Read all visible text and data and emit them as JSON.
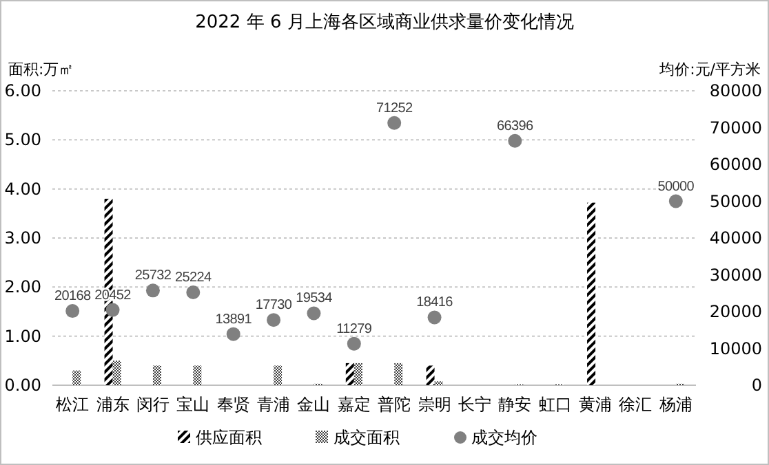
{
  "chart_data": {
    "type": "bar",
    "title": "2022 年 6 月上海各区域商业供求量价变化情况",
    "ylabel": "面积:万㎡",
    "y2label": "均价:元/平方米",
    "categories": [
      "松江",
      "浦东",
      "闵行",
      "宝山",
      "奉贤",
      "青浦",
      "金山",
      "嘉定",
      "普陀",
      "崇明",
      "长宁",
      "静安",
      "虹口",
      "黄浦",
      "徐汇",
      "杨浦"
    ],
    "series": [
      {
        "name": "供应面积",
        "color": "#000000",
        "values": [
          null,
          3.8,
          null,
          null,
          null,
          null,
          null,
          0.45,
          null,
          0.4,
          null,
          null,
          null,
          3.72,
          null,
          null
        ]
      },
      {
        "name": "成交面积",
        "color": "#404040",
        "values": [
          0.3,
          0.5,
          0.4,
          0.4,
          null,
          0.4,
          0.03,
          0.45,
          0.45,
          0.08,
          null,
          0.02,
          0.02,
          null,
          null,
          0.03
        ]
      },
      {
        "name": "成交均价",
        "type": "scatter",
        "axis": "y2",
        "color": "#808080",
        "values": [
          20168,
          20452,
          25732,
          25224,
          13891,
          17730,
          19534,
          11279,
          71252,
          18416,
          null,
          66396,
          null,
          null,
          null,
          50000
        ],
        "value_labels": [
          "20168",
          "20452",
          "25732",
          "25224",
          "13891",
          "17730",
          "19534",
          "11279",
          "71252",
          "18416",
          null,
          "66396",
          null,
          null,
          null,
          "50000"
        ]
      }
    ],
    "ylim": [
      0,
      6
    ],
    "yticks": [
      {
        "value": 0,
        "label": "0.00"
      },
      {
        "value": 1,
        "label": "1.00"
      },
      {
        "value": 2,
        "label": "2.00"
      },
      {
        "value": 3,
        "label": "3.00"
      },
      {
        "value": 4,
        "label": "4.00"
      },
      {
        "value": 5,
        "label": "5.00"
      },
      {
        "value": 6,
        "label": "6.00"
      }
    ],
    "y2lim": [
      0,
      80000
    ],
    "y2ticks": [
      0,
      10000,
      20000,
      30000,
      40000,
      50000,
      60000,
      70000,
      80000
    ],
    "grid": "y",
    "legend": "bottom",
    "marker": "circle"
  }
}
